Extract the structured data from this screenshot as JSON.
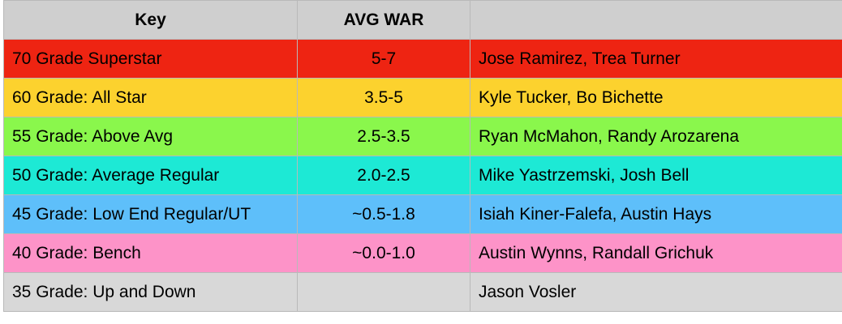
{
  "table": {
    "headers": {
      "key": "Key",
      "avg_war": "AVG WAR",
      "examples": ""
    },
    "rows": [
      {
        "key": "70 Grade Superstar",
        "avg_war": "5-7",
        "examples": "Jose Ramirez, Trea Turner",
        "color": "#ee2412"
      },
      {
        "key": "60 Grade: All Star",
        "avg_war": "3.5-5",
        "examples": "Kyle Tucker, Bo Bichette",
        "color": "#fcd22e"
      },
      {
        "key": "55 Grade: Above Avg",
        "avg_war": "2.5-3.5",
        "examples": "Ryan McMahon, Randy Arozarena",
        "color": "#8af74c"
      },
      {
        "key": "50 Grade: Average Regular",
        "avg_war": "2.0-2.5",
        "examples": "Mike Yastrzemski, Josh Bell",
        "color": "#1de9d5"
      },
      {
        "key": "45 Grade: Low End Regular/UT",
        "avg_war": "~0.5-1.8",
        "examples": "Isiah Kiner-Falefa, Austin Hays",
        "color": "#5ebffa"
      },
      {
        "key": "40 Grade: Bench",
        "avg_war": "~0.0-1.0",
        "examples": "Austin Wynns, Randall Grichuk",
        "color": "#fd93c8"
      },
      {
        "key": "35 Grade: Up and Down",
        "avg_war": "",
        "examples": "Jason Vosler",
        "color": "#d8d8d8"
      }
    ]
  }
}
